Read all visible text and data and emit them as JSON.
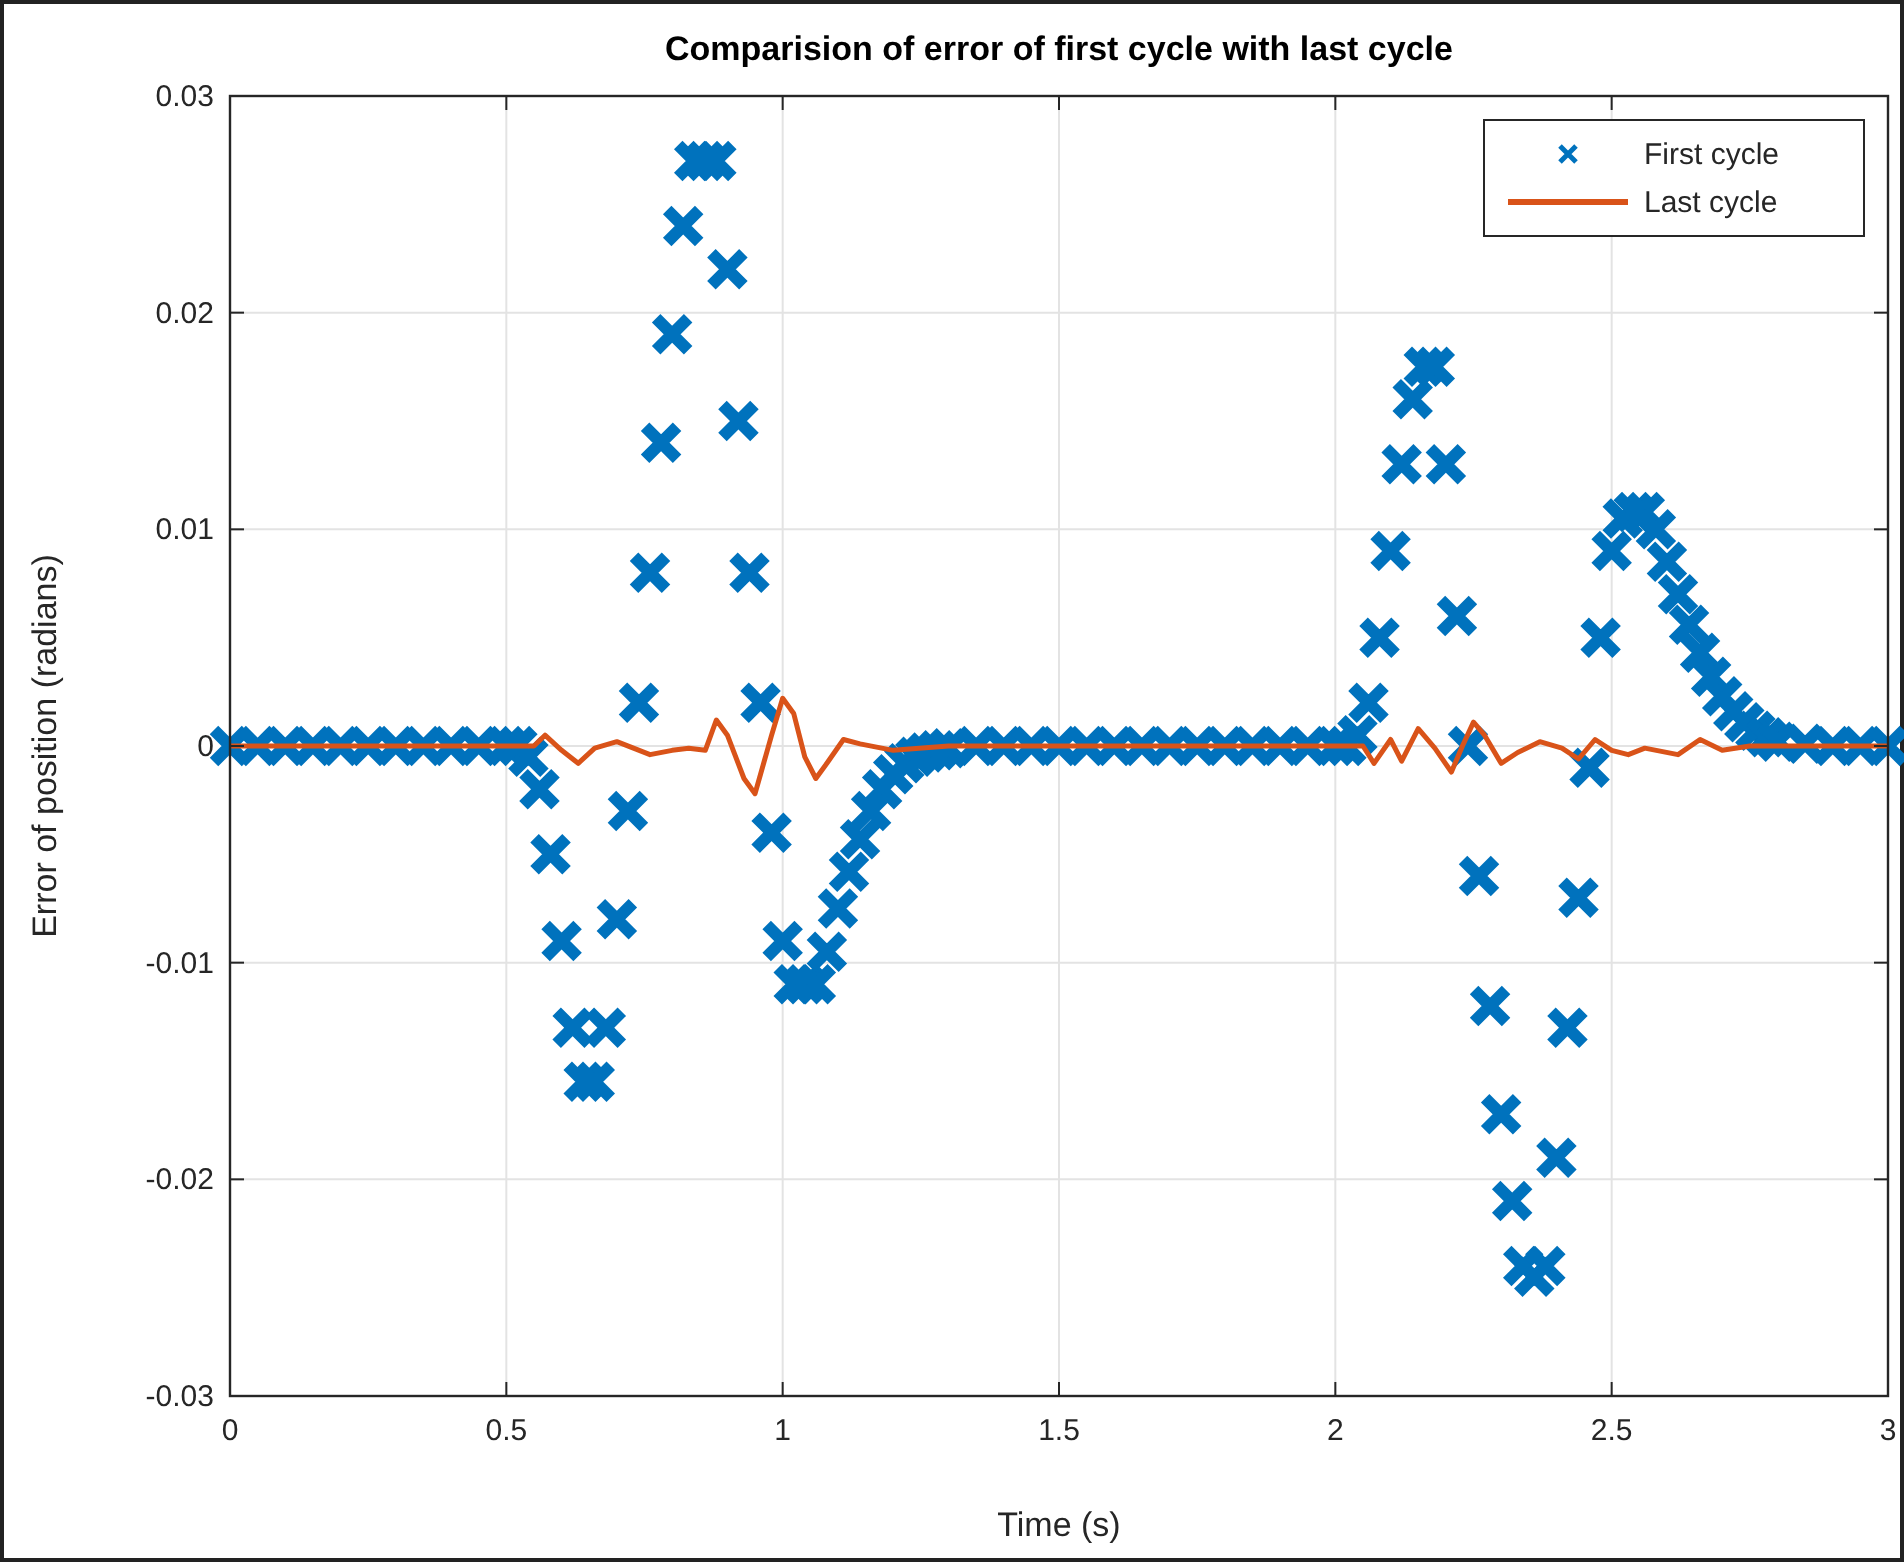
{
  "chart_data": {
    "type": "line",
    "title": "Comparision of error of first cycle with last cycle",
    "xlabel": "Time (s)",
    "ylabel": "Error of position (radians)",
    "xlim": [
      0,
      3
    ],
    "xticks": [
      0,
      0.5,
      1,
      1.5,
      2,
      2.5,
      3
    ],
    "ylim": [
      -0.03,
      0.03
    ],
    "yticks": [
      -0.03,
      -0.02,
      -0.01,
      0,
      0.01,
      0.02,
      0.03
    ],
    "grid": true,
    "legend": "top right",
    "series": [
      {
        "name": "First cycle",
        "type": "scatter",
        "marker": "cross",
        "color": "#0072bd",
        "x": [
          0,
          0.05,
          0.1,
          0.15,
          0.2,
          0.25,
          0.3,
          0.35,
          0.4,
          0.45,
          0.5,
          0.52,
          0.54,
          0.56,
          0.58,
          0.6,
          0.62,
          0.64,
          0.66,
          0.68,
          0.7,
          0.72,
          0.74,
          0.76,
          0.78,
          0.8,
          0.82,
          0.84,
          0.86,
          0.88,
          0.9,
          0.92,
          0.94,
          0.96,
          0.98,
          1.0,
          1.02,
          1.04,
          1.06,
          1.08,
          1.1,
          1.12,
          1.14,
          1.16,
          1.18,
          1.2,
          1.22,
          1.24,
          1.26,
          1.28,
          1.3,
          1.35,
          1.4,
          1.45,
          1.5,
          1.55,
          1.6,
          1.65,
          1.7,
          1.75,
          1.8,
          1.85,
          1.9,
          1.95,
          2.0,
          2.02,
          2.04,
          2.06,
          2.08,
          2.1,
          2.12,
          2.14,
          2.16,
          2.18,
          2.2,
          2.22,
          2.24,
          2.26,
          2.28,
          2.3,
          2.32,
          2.34,
          2.36,
          2.38,
          2.4,
          2.42,
          2.44,
          2.46,
          2.48,
          2.5,
          2.52,
          2.54,
          2.56,
          2.58,
          2.6,
          2.62,
          2.64,
          2.66,
          2.68,
          2.7,
          2.72,
          2.74,
          2.76,
          2.78,
          2.8,
          2.85,
          2.9,
          2.95,
          3.0
        ],
        "values": [
          0,
          0,
          0,
          0,
          0,
          0,
          0,
          0,
          0,
          0,
          0,
          0,
          -0.0005,
          -0.002,
          -0.005,
          -0.009,
          -0.013,
          -0.0155,
          -0.0155,
          -0.013,
          -0.008,
          -0.003,
          0.002,
          0.008,
          0.014,
          0.019,
          0.024,
          0.027,
          0.027,
          0.027,
          0.022,
          0.015,
          0.008,
          0.002,
          -0.004,
          -0.009,
          -0.011,
          -0.011,
          -0.011,
          -0.0095,
          -0.0075,
          -0.0058,
          -0.0043,
          -0.003,
          -0.002,
          -0.0013,
          -0.0008,
          -0.0005,
          -0.0003,
          -0.0002,
          -0.0001,
          0,
          0,
          0,
          0,
          0,
          0,
          0,
          0,
          0,
          0,
          0,
          0,
          0,
          0,
          0,
          0.0005,
          0.002,
          0.005,
          0.009,
          0.013,
          0.016,
          0.0175,
          0.0175,
          0.013,
          0.006,
          0,
          -0.006,
          -0.012,
          -0.017,
          -0.021,
          -0.024,
          -0.0245,
          -0.024,
          -0.019,
          -0.013,
          -0.007,
          -0.001,
          0.005,
          0.009,
          0.0105,
          0.0108,
          0.0108,
          0.01,
          0.0085,
          0.007,
          0.0056,
          0.0043,
          0.0032,
          0.0023,
          0.0016,
          0.0011,
          0.0007,
          0.0004,
          0.0002,
          0.0001,
          0,
          0,
          0
        ]
      },
      {
        "name": "Last cycle",
        "line_style": "solid",
        "color": "#d95319",
        "x": [
          0,
          0.5,
          0.55,
          0.57,
          0.6,
          0.63,
          0.66,
          0.7,
          0.73,
          0.76,
          0.8,
          0.83,
          0.86,
          0.88,
          0.9,
          0.93,
          0.95,
          0.98,
          1.0,
          1.02,
          1.04,
          1.06,
          1.08,
          1.11,
          1.14,
          1.2,
          1.3,
          2.0,
          2.05,
          2.07,
          2.1,
          2.12,
          2.15,
          2.18,
          2.21,
          2.23,
          2.25,
          2.27,
          2.3,
          2.33,
          2.37,
          2.41,
          2.44,
          2.47,
          2.5,
          2.53,
          2.56,
          2.62,
          2.66,
          2.7,
          2.75,
          3.0
        ],
        "values": [
          0,
          0,
          0,
          0.0005,
          -0.0002,
          -0.0008,
          -0.0001,
          0.0002,
          -0.0001,
          -0.0004,
          -0.0002,
          -0.0001,
          -0.0002,
          0.0012,
          0.0005,
          -0.0015,
          -0.0022,
          0.0005,
          0.0022,
          0.0015,
          -0.0005,
          -0.0015,
          -0.0008,
          0.0003,
          0.0001,
          -0.0002,
          0,
          0,
          0,
          -0.0008,
          0.0003,
          -0.0007,
          0.0008,
          -0.0001,
          -0.0012,
          0,
          0.0011,
          0.0005,
          -0.0008,
          -0.0003,
          0.0002,
          -0.0001,
          -0.0006,
          0.0003,
          -0.0002,
          -0.0004,
          -0.0001,
          -0.0004,
          0.0003,
          -0.0002,
          0,
          0
        ]
      }
    ]
  }
}
